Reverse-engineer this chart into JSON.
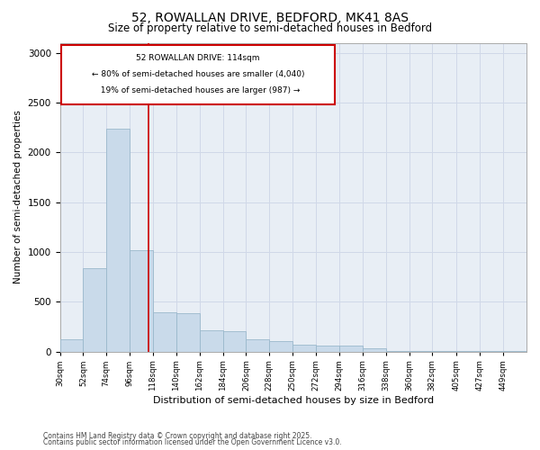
{
  "title1": "52, ROWALLAN DRIVE, BEDFORD, MK41 8AS",
  "title2": "Size of property relative to semi-detached houses in Bedford",
  "xlabel": "Distribution of semi-detached houses by size in Bedford",
  "ylabel": "Number of semi-detached properties",
  "property_size": 114,
  "property_label": "52 ROWALLAN DRIVE: 114sqm",
  "pct_smaller": 80,
  "n_smaller": 4040,
  "pct_larger": 19,
  "n_larger": 987,
  "footnote1": "Contains HM Land Registry data © Crown copyright and database right 2025.",
  "footnote2": "Contains public sector information licensed under the Open Government Licence v3.0.",
  "bar_color": "#c9daea",
  "bar_edge_color": "#9ab8cc",
  "vline_color": "#cc0000",
  "annotation_box_color": "#cc0000",
  "grid_color": "#d0d8e8",
  "background_color": "#e8eef5",
  "bins": [
    30,
    52,
    74,
    96,
    118,
    140,
    162,
    184,
    206,
    228,
    250,
    272,
    294,
    316,
    338,
    360,
    382,
    405,
    427,
    449,
    471
  ],
  "values": [
    120,
    840,
    2240,
    1020,
    390,
    380,
    210,
    200,
    120,
    100,
    70,
    60,
    55,
    30,
    5,
    3,
    2,
    1,
    1,
    1
  ]
}
